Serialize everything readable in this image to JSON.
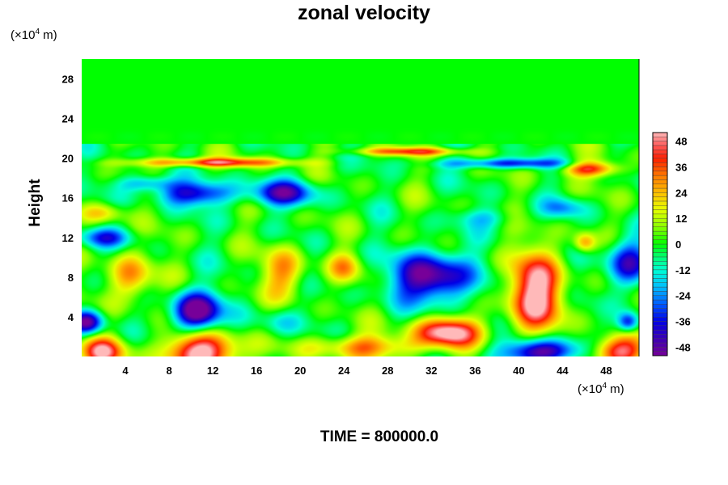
{
  "chart_data": {
    "type": "heatmap",
    "title": "zonal velocity",
    "ylabel": "Height",
    "x_unit": {
      "base": "(×10",
      "exp": "4",
      "rest": " m)"
    },
    "y_unit": {
      "base": "(×10",
      "exp": "4",
      "rest": " m)"
    },
    "xlim": [
      0,
      51
    ],
    "ylim": [
      0,
      30
    ],
    "xticks": [
      4,
      8,
      12,
      16,
      20,
      24,
      28,
      32,
      36,
      40,
      44,
      48
    ],
    "yticks": [
      4,
      8,
      12,
      16,
      20,
      24,
      28
    ],
    "colorbar": {
      "range": [
        -52,
        52
      ],
      "ticks": [
        48,
        36,
        24,
        12,
        0,
        -12,
        -24,
        -36,
        -48
      ]
    },
    "footer": "TIME = 800000.0",
    "features": [
      {
        "x": 11,
        "y": 0.5,
        "sx": 3.5,
        "sy": 2.0,
        "v": 55
      },
      {
        "x": 33.5,
        "y": 2.5,
        "sx": 3,
        "sy": 1.5,
        "v": 55
      },
      {
        "x": 49,
        "y": 0.5,
        "sx": 2.5,
        "sy": 1.5,
        "v": 50
      },
      {
        "x": 2,
        "y": 0.5,
        "sx": 2,
        "sy": 1.5,
        "v": 45
      },
      {
        "x": 26,
        "y": 1,
        "sx": 5,
        "sy": 1.2,
        "v": 30
      },
      {
        "x": 41.5,
        "y": 6.5,
        "sx": 2.5,
        "sy": 4.0,
        "v": 55
      },
      {
        "x": 46.5,
        "y": 19,
        "sx": 2.5,
        "sy": 0.8,
        "v": 42
      },
      {
        "x": 24,
        "y": 9,
        "sx": 1.5,
        "sy": 1.5,
        "v": 22
      },
      {
        "x": 18.5,
        "y": 8.5,
        "sx": 2,
        "sy": 2.5,
        "v": 28
      },
      {
        "x": 12,
        "y": 19.6,
        "sx": 7,
        "sy": 0.45,
        "v": 42
      },
      {
        "x": 30,
        "y": 20.7,
        "sx": 5,
        "sy": 0.4,
        "v": 35
      },
      {
        "x": 4.5,
        "y": 8,
        "sx": 2.0,
        "sy": 2.5,
        "v": 30
      },
      {
        "x": 2,
        "y": 14.5,
        "sx": 2,
        "sy": 1.0,
        "v": 20
      },
      {
        "x": 46,
        "y": 11.5,
        "sx": 1.0,
        "sy": 1.0,
        "v": 30
      },
      {
        "x": 10.5,
        "y": 4.5,
        "sx": 2.2,
        "sy": 2.0,
        "v": -60
      },
      {
        "x": 32,
        "y": 8,
        "sx": 3.5,
        "sy": 2.5,
        "v": -55
      },
      {
        "x": 42,
        "y": 0.5,
        "sx": 3.5,
        "sy": 1.3,
        "v": -55
      },
      {
        "x": 10.5,
        "y": 16.5,
        "sx": 3.5,
        "sy": 1.2,
        "v": -40
      },
      {
        "x": 18.5,
        "y": 16.5,
        "sx": 3,
        "sy": 1.3,
        "v": -40
      },
      {
        "x": 0.5,
        "y": 3.5,
        "sx": 1.5,
        "sy": 1.2,
        "v": -50
      },
      {
        "x": 2,
        "y": 12,
        "sx": 2.5,
        "sy": 1.0,
        "v": -28
      },
      {
        "x": 50,
        "y": 9.5,
        "sx": 2.0,
        "sy": 2.5,
        "v": -40
      },
      {
        "x": 39,
        "y": 19.5,
        "sx": 6,
        "sy": 0.5,
        "v": -35
      },
      {
        "x": 6,
        "y": 17.5,
        "sx": 2.5,
        "sy": 0.8,
        "v": -25
      },
      {
        "x": 44,
        "y": 15,
        "sx": 2,
        "sy": 1.0,
        "v": -20
      },
      {
        "x": 37,
        "y": 14,
        "sx": 3,
        "sy": 1.0,
        "v": -15
      },
      {
        "x": 50,
        "y": 3.5,
        "sx": 1.0,
        "sy": 1.0,
        "v": -40
      },
      {
        "x": 18,
        "y": 3.5,
        "sx": 2.0,
        "sy": 1.5,
        "v": -15
      }
    ]
  }
}
